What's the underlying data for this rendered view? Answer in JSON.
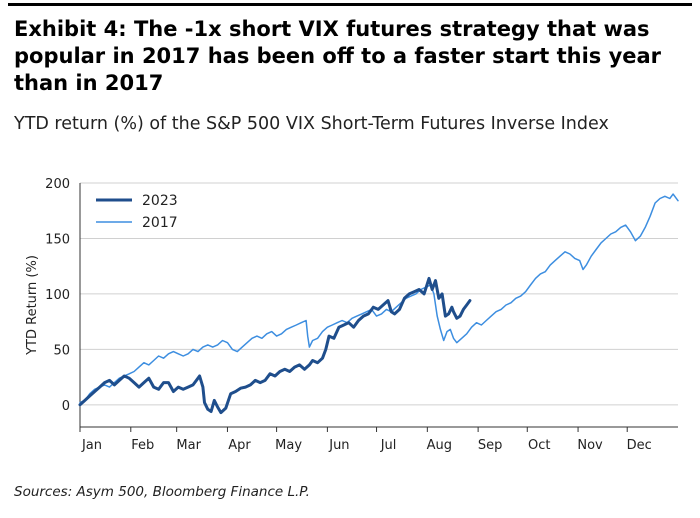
{
  "header": {
    "title": "Exhibit 4: The -1x short VIX futures strategy that was popular in 2017 has been off to a faster start this year than in 2017",
    "subtitle": "YTD return (%) of the S&P 500 VIX Short-Term Futures Inverse Index"
  },
  "footer": {
    "source": "Sources: Asym 500, Bloomberg Finance L.P."
  },
  "chart_data": {
    "type": "line",
    "title": "",
    "xlabel": "",
    "ylabel": "YTD Return (%)",
    "ylim": [
      -20,
      200
    ],
    "yticks": [
      0,
      50,
      100,
      150,
      200
    ],
    "x_unit": "day of year",
    "xlim": [
      0,
      365
    ],
    "month_ticks": [
      {
        "label": "Jan",
        "day": 0
      },
      {
        "label": "Feb",
        "day": 31
      },
      {
        "label": "Mar",
        "day": 59
      },
      {
        "label": "Apr",
        "day": 90
      },
      {
        "label": "May",
        "day": 120
      },
      {
        "label": "Jun",
        "day": 151
      },
      {
        "label": "Jul",
        "day": 181
      },
      {
        "label": "Aug",
        "day": 212
      },
      {
        "label": "Sep",
        "day": 243
      },
      {
        "label": "Oct",
        "day": 273
      },
      {
        "label": "Nov",
        "day": 304
      },
      {
        "label": "Dec",
        "day": 334
      }
    ],
    "grid": true,
    "legend_position": "top-left",
    "series": [
      {
        "name": "2023",
        "color": "#1f4e8c",
        "width": 3,
        "points": [
          [
            0,
            0
          ],
          [
            3,
            4
          ],
          [
            6,
            8
          ],
          [
            9,
            12
          ],
          [
            12,
            16
          ],
          [
            15,
            20
          ],
          [
            18,
            22
          ],
          [
            21,
            18
          ],
          [
            24,
            22
          ],
          [
            27,
            26
          ],
          [
            30,
            24
          ],
          [
            33,
            20
          ],
          [
            36,
            16
          ],
          [
            39,
            20
          ],
          [
            42,
            24
          ],
          [
            45,
            16
          ],
          [
            48,
            14
          ],
          [
            51,
            20
          ],
          [
            54,
            20
          ],
          [
            57,
            12
          ],
          [
            60,
            16
          ],
          [
            63,
            14
          ],
          [
            66,
            16
          ],
          [
            69,
            18
          ],
          [
            72,
            24
          ],
          [
            73,
            26
          ],
          [
            75,
            16
          ],
          [
            76,
            2
          ],
          [
            78,
            -4
          ],
          [
            80,
            -6
          ],
          [
            82,
            4
          ],
          [
            84,
            -2
          ],
          [
            86,
            -7
          ],
          [
            89,
            -3
          ],
          [
            92,
            10
          ],
          [
            95,
            12
          ],
          [
            98,
            15
          ],
          [
            101,
            16
          ],
          [
            104,
            18
          ],
          [
            107,
            22
          ],
          [
            110,
            20
          ],
          [
            113,
            22
          ],
          [
            116,
            28
          ],
          [
            119,
            26
          ],
          [
            122,
            30
          ],
          [
            125,
            32
          ],
          [
            128,
            30
          ],
          [
            131,
            34
          ],
          [
            134,
            36
          ],
          [
            137,
            32
          ],
          [
            140,
            36
          ],
          [
            142,
            40
          ],
          [
            145,
            38
          ],
          [
            148,
            42
          ],
          [
            150,
            50
          ],
          [
            152,
            62
          ],
          [
            155,
            60
          ],
          [
            158,
            70
          ],
          [
            161,
            72
          ],
          [
            164,
            74
          ],
          [
            167,
            70
          ],
          [
            170,
            76
          ],
          [
            173,
            80
          ],
          [
            176,
            82
          ],
          [
            179,
            88
          ],
          [
            182,
            86
          ],
          [
            185,
            90
          ],
          [
            188,
            94
          ],
          [
            190,
            84
          ],
          [
            192,
            82
          ],
          [
            195,
            86
          ],
          [
            198,
            96
          ],
          [
            201,
            100
          ],
          [
            204,
            102
          ],
          [
            207,
            104
          ],
          [
            210,
            100
          ],
          [
            213,
            114
          ],
          [
            215,
            104
          ],
          [
            217,
            112
          ],
          [
            219,
            96
          ],
          [
            221,
            100
          ],
          [
            223,
            80
          ],
          [
            225,
            82
          ],
          [
            227,
            88
          ],
          [
            228,
            84
          ],
          [
            230,
            78
          ],
          [
            232,
            80
          ],
          [
            234,
            86
          ],
          [
            236,
            90
          ],
          [
            238,
            94
          ]
        ]
      },
      {
        "name": "2017",
        "color": "#3d8ee0",
        "width": 1.5,
        "points": [
          [
            0,
            2
          ],
          [
            3,
            4
          ],
          [
            6,
            10
          ],
          [
            9,
            14
          ],
          [
            12,
            16
          ],
          [
            15,
            18
          ],
          [
            18,
            16
          ],
          [
            21,
            20
          ],
          [
            24,
            24
          ],
          [
            27,
            26
          ],
          [
            30,
            28
          ],
          [
            33,
            30
          ],
          [
            36,
            34
          ],
          [
            39,
            38
          ],
          [
            42,
            36
          ],
          [
            45,
            40
          ],
          [
            48,
            44
          ],
          [
            51,
            42
          ],
          [
            54,
            46
          ],
          [
            57,
            48
          ],
          [
            60,
            46
          ],
          [
            63,
            44
          ],
          [
            66,
            46
          ],
          [
            69,
            50
          ],
          [
            72,
            48
          ],
          [
            75,
            52
          ],
          [
            78,
            54
          ],
          [
            81,
            52
          ],
          [
            84,
            54
          ],
          [
            87,
            58
          ],
          [
            90,
            56
          ],
          [
            93,
            50
          ],
          [
            96,
            48
          ],
          [
            99,
            52
          ],
          [
            102,
            56
          ],
          [
            105,
            60
          ],
          [
            108,
            62
          ],
          [
            111,
            60
          ],
          [
            114,
            64
          ],
          [
            117,
            66
          ],
          [
            120,
            62
          ],
          [
            123,
            64
          ],
          [
            126,
            68
          ],
          [
            129,
            70
          ],
          [
            132,
            72
          ],
          [
            135,
            74
          ],
          [
            138,
            76
          ],
          [
            139,
            62
          ],
          [
            140,
            52
          ],
          [
            142,
            58
          ],
          [
            145,
            60
          ],
          [
            148,
            66
          ],
          [
            151,
            70
          ],
          [
            154,
            72
          ],
          [
            157,
            74
          ],
          [
            160,
            76
          ],
          [
            163,
            74
          ],
          [
            166,
            78
          ],
          [
            169,
            80
          ],
          [
            172,
            82
          ],
          [
            175,
            84
          ],
          [
            178,
            86
          ],
          [
            181,
            80
          ],
          [
            184,
            82
          ],
          [
            187,
            86
          ],
          [
            190,
            84
          ],
          [
            193,
            88
          ],
          [
            196,
            92
          ],
          [
            199,
            96
          ],
          [
            202,
            98
          ],
          [
            205,
            100
          ],
          [
            208,
            104
          ],
          [
            211,
            106
          ],
          [
            214,
            108
          ],
          [
            216,
            100
          ],
          [
            218,
            80
          ],
          [
            220,
            68
          ],
          [
            222,
            58
          ],
          [
            224,
            66
          ],
          [
            226,
            68
          ],
          [
            228,
            60
          ],
          [
            230,
            56
          ],
          [
            233,
            60
          ],
          [
            236,
            64
          ],
          [
            239,
            70
          ],
          [
            242,
            74
          ],
          [
            245,
            72
          ],
          [
            248,
            76
          ],
          [
            251,
            80
          ],
          [
            254,
            84
          ],
          [
            257,
            86
          ],
          [
            260,
            90
          ],
          [
            263,
            92
          ],
          [
            266,
            96
          ],
          [
            269,
            98
          ],
          [
            272,
            102
          ],
          [
            275,
            108
          ],
          [
            278,
            114
          ],
          [
            281,
            118
          ],
          [
            284,
            120
          ],
          [
            287,
            126
          ],
          [
            290,
            130
          ],
          [
            293,
            134
          ],
          [
            296,
            138
          ],
          [
            299,
            136
          ],
          [
            302,
            132
          ],
          [
            305,
            130
          ],
          [
            307,
            122
          ],
          [
            309,
            126
          ],
          [
            312,
            134
          ],
          [
            315,
            140
          ],
          [
            318,
            146
          ],
          [
            321,
            150
          ],
          [
            324,
            154
          ],
          [
            327,
            156
          ],
          [
            330,
            160
          ],
          [
            333,
            162
          ],
          [
            336,
            156
          ],
          [
            339,
            148
          ],
          [
            342,
            152
          ],
          [
            345,
            160
          ],
          [
            348,
            170
          ],
          [
            351,
            182
          ],
          [
            354,
            186
          ],
          [
            357,
            188
          ],
          [
            360,
            186
          ],
          [
            362,
            190
          ],
          [
            365,
            184
          ]
        ]
      }
    ]
  }
}
